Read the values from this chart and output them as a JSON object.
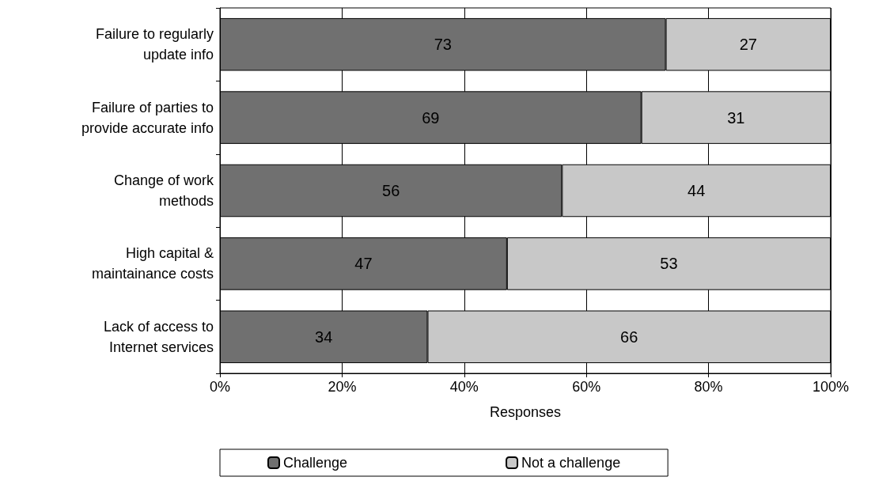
{
  "chart_data": {
    "type": "bar",
    "orientation": "horizontal",
    "stacked": true,
    "xlabel": "Responses",
    "categories": [
      "Failure to regularly\nupdate info",
      "Failure of parties to\nprovide accurate info",
      "Change of work\nmethods",
      "High capital &\nmaintainance costs",
      "Lack of access to\nInternet services"
    ],
    "series": [
      {
        "name": "Challenge",
        "color": "#707070",
        "values": [
          73,
          69,
          56,
          47,
          34
        ]
      },
      {
        "name": "Not a challenge",
        "color": "#c8c8c8",
        "values": [
          27,
          31,
          44,
          53,
          66
        ]
      }
    ],
    "xlim": [
      0,
      100
    ],
    "xticks": [
      {
        "value": 0,
        "label": "0%"
      },
      {
        "value": 20,
        "label": "20%"
      },
      {
        "value": 40,
        "label": "40%"
      },
      {
        "value": 60,
        "label": "60%"
      },
      {
        "value": 80,
        "label": "80%"
      },
      {
        "value": 100,
        "label": "100%"
      }
    ],
    "data_labels": true,
    "grid": "x",
    "legend": "bottom"
  }
}
